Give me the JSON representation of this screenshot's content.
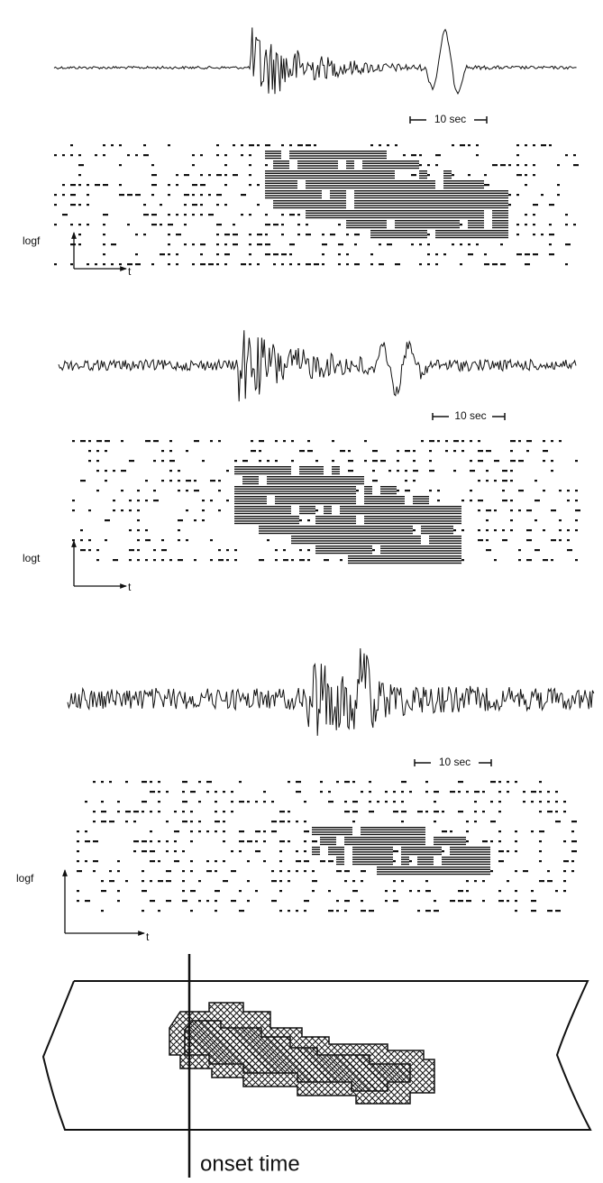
{
  "panels": [
    {
      "scale_label": "10 sec",
      "y_axis_label": "logf",
      "x_axis_label": "t"
    },
    {
      "scale_label": "10 sec",
      "y_axis_label": "logt",
      "x_axis_label": "t"
    },
    {
      "scale_label": "10 sec",
      "y_axis_label": "logf",
      "x_axis_label": "t"
    }
  ],
  "diagram": {
    "label": "onset time"
  }
}
